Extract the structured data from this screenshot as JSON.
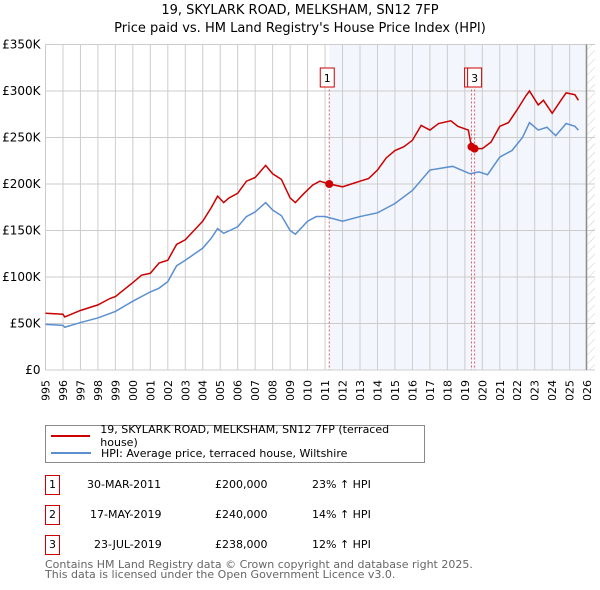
{
  "chart_data": {
    "type": "line",
    "title": "19, SKYLARK ROAD, MELKSHAM, SN12 7FP",
    "subtitle": "Price paid vs. HM Land Registry's House Price Index (HPI)",
    "xlim": [
      1995,
      2026.45
    ],
    "ylim": [
      0,
      350000
    ],
    "x_ticks": [
      1995,
      1996,
      1997,
      1998,
      1999,
      2000,
      2001,
      2002,
      2003,
      2004,
      2005,
      2006,
      2007,
      2008,
      2009,
      2010,
      2011,
      2012,
      2013,
      2014,
      2015,
      2016,
      2017,
      2018,
      2019,
      2020,
      2021,
      2022,
      2023,
      2024,
      2025,
      2026
    ],
    "y_ticks": [
      {
        "v": 0,
        "label": "£0"
      },
      {
        "v": 50000,
        "label": "£50K"
      },
      {
        "v": 100000,
        "label": "£100K"
      },
      {
        "v": 150000,
        "label": "£150K"
      },
      {
        "v": 200000,
        "label": "£200K"
      },
      {
        "v": 250000,
        "label": "£250K"
      },
      {
        "v": 300000,
        "label": "£300K"
      },
      {
        "v": 350000,
        "label": "£350K"
      }
    ],
    "grid": true,
    "series": [
      {
        "name": "19, SKYLARK ROAD, MELKSHAM, SN12 7FP (terraced house)",
        "color": "#cc0000",
        "x": [
          1995,
          1996,
          1996.1,
          1997,
          1998,
          1998.7,
          1999,
          2000,
          2000.5,
          2001,
          2001.5,
          2002,
          2002.5,
          2003,
          2003.5,
          2004,
          2004.5,
          2004.85,
          2005.2,
          2005.5,
          2006,
          2006.5,
          2007,
          2007.6,
          2008,
          2008.5,
          2009,
          2009.3,
          2009.8,
          2010.3,
          2010.7,
          2011.24,
          2012,
          2012.5,
          2013,
          2013.5,
          2014,
          2014.5,
          2015,
          2015.5,
          2016,
          2016.5,
          2017,
          2017.5,
          2018.2,
          2018.6,
          2019.2,
          2019.38,
          2019.56,
          2020,
          2020.5,
          2021,
          2021.5,
          2022,
          2022.5,
          2022.7,
          2023.2,
          2023.5,
          2024,
          2024.5,
          2024.8,
          2025.3,
          2025.5
        ],
        "y": [
          61000,
          60000,
          57000,
          64000,
          70000,
          77000,
          79000,
          94000,
          102000,
          104000,
          115000,
          118000,
          135000,
          140000,
          150000,
          160000,
          175000,
          187000,
          180000,
          185000,
          190000,
          203000,
          207000,
          220000,
          211000,
          205000,
          185000,
          180000,
          190000,
          199000,
          203000,
          200000,
          197000,
          200000,
          203000,
          206000,
          215000,
          228000,
          236000,
          240000,
          247000,
          263000,
          258000,
          265000,
          268000,
          262000,
          258000,
          240000,
          238000,
          238000,
          245000,
          262000,
          266000,
          280000,
          295000,
          300000,
          285000,
          290000,
          276000,
          290000,
          298000,
          296000,
          290000
        ]
      },
      {
        "name": "HPI: Average price, terraced house, Wiltshire",
        "color": "#5b8fd0",
        "x": [
          1995,
          1996,
          1996.1,
          1997,
          1998,
          1999,
          2000,
          2001,
          2001.5,
          2002,
          2002.5,
          2003,
          2004,
          2004.5,
          2004.85,
          2005.2,
          2006,
          2006.5,
          2007,
          2007.6,
          2008,
          2008.5,
          2009,
          2009.3,
          2010,
          2010.5,
          2011,
          2012,
          2013,
          2014,
          2015,
          2016,
          2017,
          2018.3,
          2019.3,
          2019.8,
          2020.3,
          2021,
          2021.7,
          2022.3,
          2022.7,
          2023.2,
          2023.7,
          2024.2,
          2024.8,
          2025.3,
          2025.5
        ],
        "y": [
          49000,
          48000,
          46000,
          51000,
          56000,
          63000,
          74000,
          84000,
          88000,
          95000,
          112000,
          118000,
          131000,
          142000,
          152000,
          147000,
          154000,
          165000,
          170000,
          180000,
          172000,
          166000,
          150000,
          146000,
          160000,
          165000,
          165000,
          160000,
          165000,
          169000,
          179000,
          193000,
          215000,
          219000,
          211000,
          213000,
          210000,
          229000,
          236000,
          250000,
          266000,
          258000,
          261000,
          252000,
          265000,
          262000,
          258000
        ]
      }
    ],
    "sales": [
      {
        "label": "1",
        "date": "30-MAR-2011",
        "x": 2011.24,
        "price": 200000,
        "price_text": "£200,000",
        "hpi": "23% ↑ HPI"
      },
      {
        "label": "2",
        "date": "17-MAY-2019",
        "x": 2019.38,
        "price": 240000,
        "price_text": "£240,000",
        "hpi": "14% ↑ HPI"
      },
      {
        "label": "3",
        "date": "23-JUL-2019",
        "x": 2019.56,
        "price": 238000,
        "price_text": "£238,000",
        "hpi": "12% ↑ HPI"
      }
    ],
    "shaded_from": 2011.24,
    "data_end": 2025.95
  },
  "footer": {
    "line1": "Contains HM Land Registry data © Crown copyright and database right 2025.",
    "line2": "This data is licensed under the Open Government Licence v3.0."
  }
}
